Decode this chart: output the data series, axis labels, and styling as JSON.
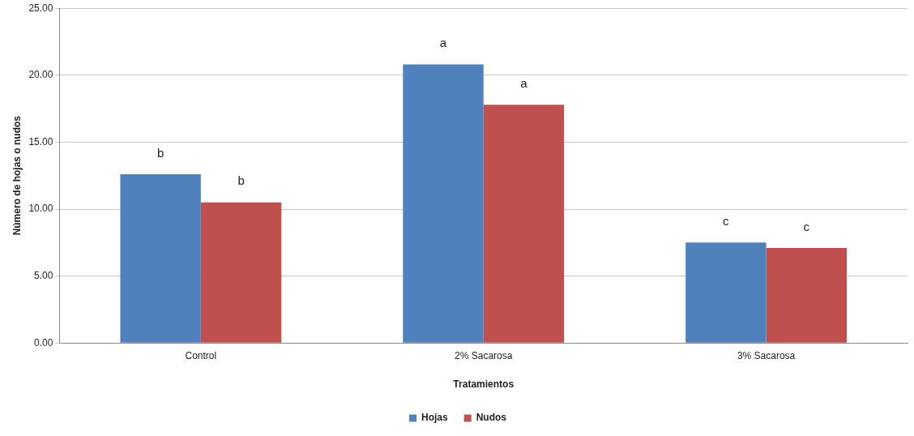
{
  "chart_data": {
    "type": "bar",
    "xlabel": "Tratamientos",
    "ylabel": "Número de hojas o nudos",
    "categories": [
      "Control",
      "2% Sacarosa",
      "3% Sacarosa"
    ],
    "series": [
      {
        "name": "Hojas",
        "color": "#4f81bd",
        "values": [
          12.6,
          20.8,
          7.5
        ],
        "value_labels": [
          "b",
          "a",
          "c"
        ]
      },
      {
        "name": "Nudos",
        "color": "#c0504d",
        "values": [
          10.5,
          17.8,
          7.1
        ],
        "value_labels": [
          "b",
          "a",
          "c"
        ]
      }
    ],
    "ylim": [
      0,
      25
    ],
    "yticks": [
      {
        "value": 0,
        "label": "0.00"
      },
      {
        "value": 5,
        "label": "5.00"
      },
      {
        "value": 10,
        "label": "10.00"
      },
      {
        "value": 15,
        "label": "15.00"
      },
      {
        "value": 20,
        "label": "20.00"
      },
      {
        "value": 25,
        "label": "25.00"
      }
    ],
    "grid": "y",
    "legend": "bottom"
  }
}
